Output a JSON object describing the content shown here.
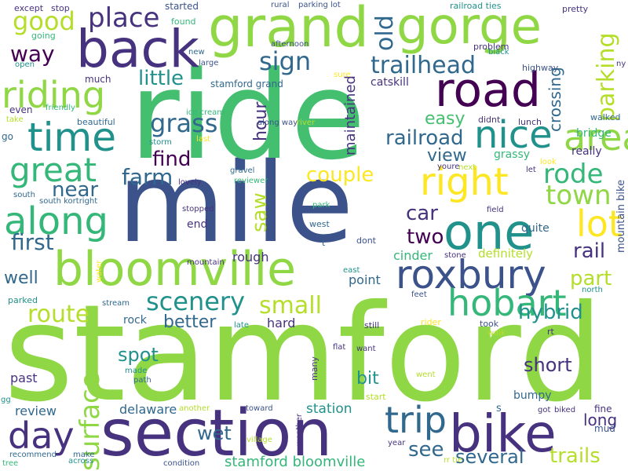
{
  "palette": {
    "background": "#ffffff",
    "lime": "#8fd744",
    "green": "#44bf70",
    "teal": "#21918c",
    "blue": "#3b528b",
    "purple": "#46327e",
    "darkpurple": "#440154",
    "yellow": "#fde725",
    "yellowgreen": "#b5de2b",
    "seagreen": "#35b779",
    "steelblue": "#31688e"
  },
  "words": {
    "stamford": "stamford",
    "mile": "mile",
    "ride": "ride",
    "section": "section",
    "bike": "bike",
    "grand": "grand",
    "gorge": "gorge",
    "back": "back",
    "road": "road",
    "bloomville": "bloomville",
    "one": "one",
    "roxbury": "roxbury",
    "time": "time",
    "area": "area",
    "riding": "riding",
    "nice": "nice",
    "trip": "trip",
    "hobart": "hobart",
    "along": "along",
    "great": "great",
    "right": "right",
    "lot": "lot",
    "day": "day",
    "surface": "surface",
    "parking": "parking",
    "place": "place",
    "good": "good",
    "scenery": "scenery",
    "trailhead": "trailhead",
    "sign": "sign",
    "grass": "grass",
    "rode": "rode",
    "town": "town",
    "small": "small",
    "old": "old",
    "way": "way",
    "farm": "farm",
    "railroad": "railroad",
    "couple": "couple",
    "little": "little",
    "route": "route",
    "near": "near",
    "first": "first",
    "saw": "saw",
    "car": "car",
    "two": "two",
    "rail": "rail",
    "part": "part",
    "see": "see",
    "several": "several",
    "trails": "trails",
    "hybrid": "hybrid",
    "short": "short",
    "wet": "wet",
    "spot": "spot",
    "bit": "bit",
    "well": "well",
    "find": "find",
    "hour": "hour",
    "crossing": "crossing",
    "maintained": "maintained",
    "easy": "easy",
    "view": "view",
    "better": "better",
    "long": "long",
    "stamford_bloomville": "stamford bloomville",
    "station": "station",
    "delaware": "delaware",
    "review": "review",
    "past": "past",
    "rock": "rock",
    "hard": "hard",
    "rough": "rough",
    "end": "end",
    "quite": "quite",
    "point": "point",
    "cinder": "cinder",
    "definitely": "definitely",
    "mountain_bike": "mountain bike",
    "bumpy": "bumpy",
    "grassy": "grassy",
    "bridge": "bridge",
    "really": "really",
    "catskill": "catskill",
    "much": "much",
    "started": "started",
    "even": "even",
    "mud": "mud",
    "fine": "fine",
    "s": "s",
    "stamford_grand": "stamford grand",
    "beautiful": "beautiful",
    "go": "go",
    "didnt": "didnt",
    "lunch": "lunch",
    "walked": "walked",
    "highway": "highway",
    "pretty": "pretty",
    "problem": "problem",
    "railroad_ties": "railroad ties",
    "parking_lot": "parking lot",
    "rural": "rural",
    "stop": "stop",
    "except": "except",
    "going": "going",
    "found": "found",
    "new": "new",
    "large": "large",
    "afternoon": "afternoon",
    "open": "open",
    "sure": "sure",
    "black": "black",
    "ny": "ny",
    "friendly": "friendly",
    "take": "take",
    "ice_cream": "ice cream",
    "river": "river",
    "storm": "storm",
    "last": "last",
    "along_way": "along way",
    "youre": "youre",
    "next": "next",
    "look": "look",
    "let": "let",
    "gravel": "gravel",
    "reviewer": "reviewer",
    "lovely": "lovely",
    "south": "south",
    "south_kortright": "south kortright",
    "stopped": "stopped",
    "park": "park",
    "field": "field",
    "west": "west",
    "t": "t",
    "dont": "dont",
    "mountain": "mountain",
    "water": "water",
    "east": "east",
    "stone": "stone",
    "parked": "parked",
    "stream": "stream",
    "late": "late",
    "feet": "feet",
    "north": "north",
    "still": "still",
    "rider": "rider",
    "took": "took",
    "walk": "walk",
    "rt": "rt",
    "flat": "flat",
    "want": "want",
    "many": "many",
    "made": "made",
    "path": "path",
    "went": "went",
    "gg": "gg",
    "another": "another",
    "toward": "toward",
    "start": "start",
    "got": "got",
    "biked": "biked",
    "recommend": "recommend",
    "make": "make",
    "across": "across",
    "tree": "tree",
    "condition": "condition",
    "village": "village",
    "weather": "weather",
    "year": "year",
    "rr_tie": "rr tie"
  }
}
